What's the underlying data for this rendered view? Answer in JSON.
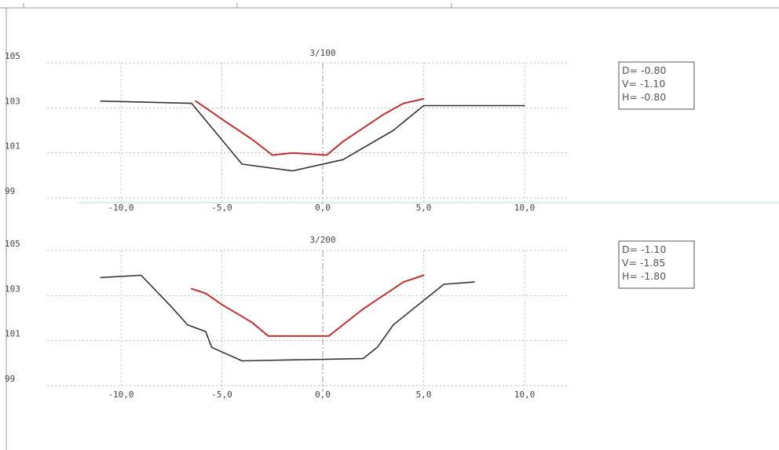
{
  "chart_data": [
    {
      "type": "line",
      "title": "3/100",
      "xlim": [
        -11.5,
        11.5
      ],
      "ylim": [
        98.6,
        105.4
      ],
      "xticks": [
        -10,
        -5,
        0,
        5,
        10
      ],
      "xtick_labels": [
        "-10,0",
        "-5,0",
        "0,0",
        "5,0",
        "10,0"
      ],
      "yticks": [
        99,
        101,
        103,
        105
      ],
      "ytick_labels": [
        "99",
        "101",
        "103",
        "105"
      ],
      "grid": true,
      "series": [
        {
          "color": "#333333",
          "points": [
            [
              -11.0,
              103.3
            ],
            [
              -6.5,
              103.2
            ],
            [
              -4.0,
              100.5
            ],
            [
              -1.5,
              100.2
            ],
            [
              1.0,
              100.7
            ],
            [
              3.5,
              102.0
            ],
            [
              5.0,
              103.1
            ],
            [
              10.0,
              103.1
            ]
          ]
        },
        {
          "color": "#c03030",
          "points": [
            [
              -6.3,
              103.3
            ],
            [
              -5.8,
              103.0
            ],
            [
              -5.0,
              102.5
            ],
            [
              -3.5,
              101.6
            ],
            [
              -2.5,
              100.9
            ],
            [
              -1.5,
              101.0
            ],
            [
              0.2,
              100.9
            ],
            [
              1.0,
              101.5
            ],
            [
              2.0,
              102.1
            ],
            [
              3.0,
              102.7
            ],
            [
              4.0,
              103.2
            ],
            [
              5.0,
              103.4
            ]
          ]
        }
      ],
      "annotation": [
        "D= -0.80",
        "V= -1.10",
        "H= -0.80"
      ]
    },
    {
      "type": "line",
      "title": "3/200",
      "xlim": [
        -11.5,
        11.5
      ],
      "ylim": [
        98.6,
        105.4
      ],
      "xticks": [
        -10,
        -5,
        0,
        5,
        10
      ],
      "xtick_labels": [
        "-10,0",
        "-5,0",
        "0,0",
        "5,0",
        "10,0"
      ],
      "yticks": [
        99,
        101,
        103,
        105
      ],
      "ytick_labels": [
        "99",
        "101",
        "103",
        "105"
      ],
      "grid": true,
      "series": [
        {
          "color": "#333333",
          "points": [
            [
              -11.0,
              103.8
            ],
            [
              -9.0,
              103.9
            ],
            [
              -7.5,
              102.5
            ],
            [
              -6.7,
              101.7
            ],
            [
              -5.8,
              101.4
            ],
            [
              -5.5,
              100.7
            ],
            [
              -4.0,
              100.1
            ],
            [
              2.0,
              100.2
            ],
            [
              2.7,
              100.7
            ],
            [
              3.5,
              101.7
            ],
            [
              6.0,
              103.5
            ],
            [
              7.5,
              103.6
            ]
          ]
        },
        {
          "color": "#c03030",
          "points": [
            [
              -6.5,
              103.3
            ],
            [
              -5.8,
              103.1
            ],
            [
              -5.0,
              102.6
            ],
            [
              -3.5,
              101.8
            ],
            [
              -2.7,
              101.2
            ],
            [
              -1.0,
              101.2
            ],
            [
              0.3,
              101.2
            ],
            [
              1.0,
              101.7
            ],
            [
              2.0,
              102.4
            ],
            [
              3.0,
              103.0
            ],
            [
              4.0,
              103.6
            ],
            [
              5.0,
              103.9
            ]
          ]
        }
      ],
      "annotation": [
        "D= -1.10",
        "V= -1.85",
        "H= -1.80"
      ]
    }
  ]
}
